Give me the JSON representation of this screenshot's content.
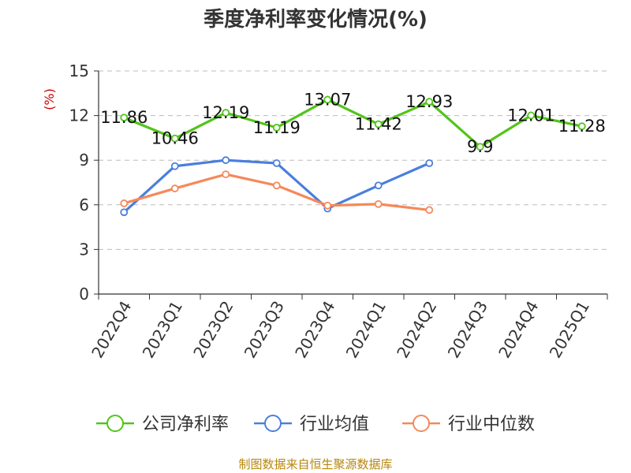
{
  "chart_data": {
    "type": "line",
    "title": "季度净利率变化情况(%)",
    "ylabel": "(%)",
    "xlabel": "",
    "categories": [
      "2022Q4",
      "2023Q1",
      "2023Q2",
      "2023Q3",
      "2023Q4",
      "2024Q1",
      "2024Q2",
      "2024Q3",
      "2024Q4",
      "2025Q1"
    ],
    "ylim": [
      0,
      15
    ],
    "yticks": [
      0,
      3,
      6,
      9,
      12,
      15
    ],
    "grid": "horizontal dashed",
    "legend_position": "bottom",
    "series": [
      {
        "name": "公司净利率",
        "color": "#52c41a",
        "values": [
          11.86,
          10.46,
          12.19,
          11.19,
          13.07,
          11.42,
          12.93,
          9.9,
          12.01,
          11.28
        ],
        "data_labels": [
          "11.86",
          "10.46",
          "12.19",
          "11.19",
          "13.07",
          "11.42",
          "12.93",
          "9.9",
          "12.01",
          "11.28"
        ]
      },
      {
        "name": "行业均值",
        "color": "#4a7fdc",
        "values": [
          5.5,
          8.6,
          9.0,
          8.8,
          5.75,
          7.3,
          8.8,
          null,
          null,
          null
        ]
      },
      {
        "name": "行业中位数",
        "color": "#f5895a",
        "values": [
          6.1,
          7.1,
          8.05,
          7.3,
          5.95,
          6.05,
          5.65,
          null,
          null,
          null
        ]
      }
    ]
  },
  "source": "制图数据来自恒生聚源数据库"
}
